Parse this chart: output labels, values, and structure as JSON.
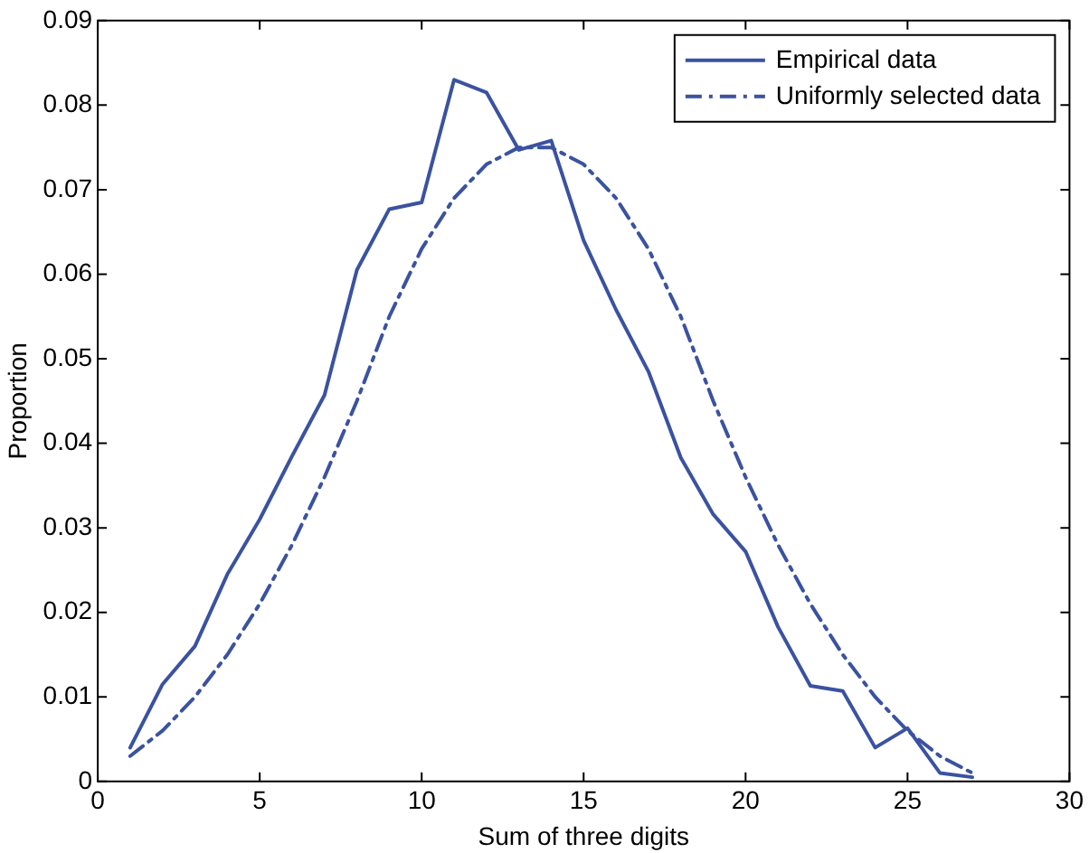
{
  "chart_data": {
    "type": "line",
    "xlabel": "Sum of three digits",
    "ylabel": "Proportion",
    "x": [
      1,
      2,
      3,
      4,
      5,
      6,
      7,
      8,
      9,
      10,
      11,
      12,
      13,
      14,
      15,
      16,
      17,
      18,
      19,
      20,
      21,
      22,
      23,
      24,
      25,
      26,
      27
    ],
    "series": [
      {
        "name": "Empirical data",
        "color": "#3a52a0",
        "line_style": "solid",
        "values": [
          0.004,
          0.0115,
          0.016,
          0.0245,
          0.031,
          0.0385,
          0.0457,
          0.0605,
          0.0677,
          0.0685,
          0.083,
          0.0815,
          0.0747,
          0.0758,
          0.064,
          0.0558,
          0.0485,
          0.0383,
          0.0316,
          0.0272,
          0.0183,
          0.0113,
          0.0107,
          0.004,
          0.0063,
          0.001,
          0.0005
        ]
      },
      {
        "name": "Uniformly selected data",
        "color": "#3a52a0",
        "line_style": "dashed",
        "values": [
          0.003,
          0.006,
          0.01,
          0.015,
          0.021,
          0.028,
          0.036,
          0.045,
          0.055,
          0.063,
          0.069,
          0.073,
          0.075,
          0.075,
          0.073,
          0.069,
          0.063,
          0.055,
          0.045,
          0.036,
          0.028,
          0.021,
          0.015,
          0.01,
          0.006,
          0.003,
          0.001
        ]
      }
    ],
    "xlim": [
      0,
      30
    ],
    "xticks": [
      0,
      5,
      10,
      15,
      20,
      25,
      30
    ],
    "ylim": [
      0,
      0.09
    ],
    "yticks": [
      0,
      0.01,
      0.02,
      0.03,
      0.04,
      0.05,
      0.06,
      0.07,
      0.08,
      0.09
    ],
    "grid": false,
    "legend": "top right",
    "marker": "none"
  }
}
